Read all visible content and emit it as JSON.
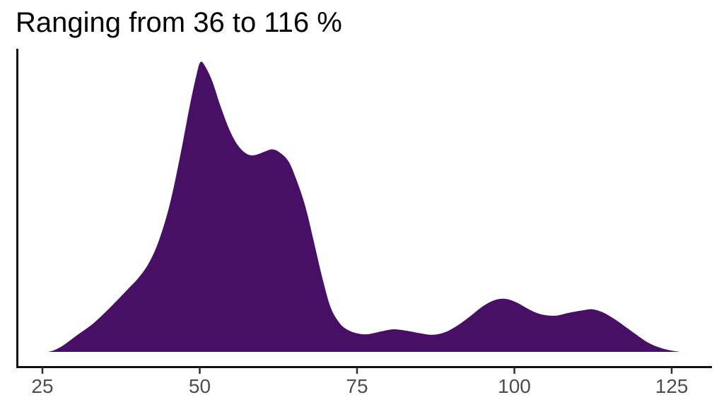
{
  "chart": {
    "colors": {
      "fill": "#471065",
      "axis_line": "#121212",
      "tick_mark": "#2e2e2e",
      "tick_label": "#4d4d4d",
      "title": "#000000",
      "background": "#ffffff"
    }
  },
  "chart_data": {
    "type": "area",
    "subtype": "density",
    "title": "Ranging from 36 to 116 %",
    "xlabel": "",
    "ylabel": "",
    "legend": null,
    "grid": false,
    "x_ticks": [
      25,
      50,
      75,
      100,
      125
    ],
    "x_tick_labels": [
      "25",
      "50",
      "75",
      "100",
      "125"
    ],
    "xlim": [
      21,
      131.5
    ],
    "ylim_relative": [
      0,
      1.05
    ],
    "series": [
      {
        "name": "density",
        "x": [
          25.9,
          27.0,
          28.4,
          30.6,
          32.9,
          35.1,
          36.8,
          38.5,
          40.2,
          41.9,
          43.5,
          45.2,
          46.9,
          48.4,
          49.5,
          50.1,
          50.8,
          52.0,
          53.3,
          54.8,
          56.2,
          57.6,
          58.9,
          60.4,
          61.5,
          62.6,
          64.1,
          65.4,
          66.8,
          68.1,
          69.5,
          70.8,
          72.2,
          73.5,
          75.0,
          76.7,
          78.9,
          80.8,
          82.9,
          85.1,
          87.0,
          89.0,
          91.1,
          93.1,
          95.1,
          96.9,
          98.6,
          100.3,
          102.3,
          104.2,
          106.5,
          108.7,
          111.0,
          112.4,
          114.0,
          115.8,
          117.7,
          119.4,
          121.1,
          122.8,
          124.4,
          126.3
        ],
        "y_relative": [
          0.0,
          0.007,
          0.024,
          0.059,
          0.095,
          0.139,
          0.176,
          0.215,
          0.254,
          0.306,
          0.384,
          0.506,
          0.677,
          0.848,
          0.958,
          1.0,
          0.988,
          0.934,
          0.848,
          0.763,
          0.709,
          0.682,
          0.68,
          0.692,
          0.699,
          0.69,
          0.658,
          0.592,
          0.501,
          0.384,
          0.254,
          0.154,
          0.1,
          0.076,
          0.064,
          0.061,
          0.071,
          0.078,
          0.073,
          0.064,
          0.059,
          0.068,
          0.093,
          0.125,
          0.159,
          0.179,
          0.183,
          0.171,
          0.147,
          0.13,
          0.125,
          0.135,
          0.144,
          0.147,
          0.137,
          0.115,
          0.086,
          0.059,
          0.034,
          0.017,
          0.007,
          0.0
        ]
      }
    ],
    "annotations": []
  }
}
